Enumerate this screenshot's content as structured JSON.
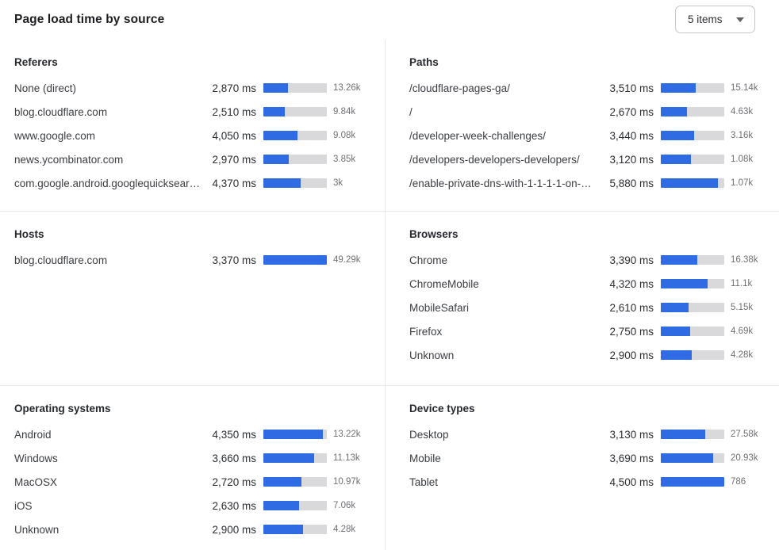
{
  "header": {
    "title": "Page load time by source",
    "items_dropdown": {
      "selected": "5 items"
    }
  },
  "colors": {
    "bar_fill": "#2f6ce3",
    "bar_track": "#d9d9dc",
    "divider": "#e9e9eb"
  },
  "sections": [
    {
      "title": "Referers",
      "rows": [
        {
          "label": "None (direct)",
          "ms": "2,870 ms",
          "ms_value": 2870,
          "count": "13.26k",
          "bar_pct": 39
        },
        {
          "label": "blog.cloudflare.com",
          "ms": "2,510 ms",
          "ms_value": 2510,
          "count": "9.84k",
          "bar_pct": 34
        },
        {
          "label": "www.google.com",
          "ms": "4,050 ms",
          "ms_value": 4050,
          "count": "9.08k",
          "bar_pct": 54
        },
        {
          "label": "news.ycombinator.com",
          "ms": "2,970 ms",
          "ms_value": 2970,
          "count": "3.85k",
          "bar_pct": 40
        },
        {
          "label": "com.google.android.googlequicksearc…",
          "ms": "4,370 ms",
          "ms_value": 4370,
          "count": "3k",
          "bar_pct": 59
        }
      ]
    },
    {
      "title": "Paths",
      "rows": [
        {
          "label": "/cloudflare-pages-ga/",
          "ms": "3,510 ms",
          "ms_value": 3510,
          "count": "15.14k",
          "bar_pct": 55
        },
        {
          "label": "/",
          "ms": "2,670 ms",
          "ms_value": 2670,
          "count": "4.63k",
          "bar_pct": 41
        },
        {
          "label": "/developer-week-challenges/",
          "ms": "3,440 ms",
          "ms_value": 3440,
          "count": "3.16k",
          "bar_pct": 53
        },
        {
          "label": "/developers-developers-developers/",
          "ms": "3,120 ms",
          "ms_value": 3120,
          "count": "1.08k",
          "bar_pct": 48
        },
        {
          "label": "/enable-private-dns-with-1-1-1-1-on-…",
          "ms": "5,880 ms",
          "ms_value": 5880,
          "count": "1.07k",
          "bar_pct": 90
        }
      ]
    },
    {
      "title": "Hosts",
      "rows": [
        {
          "label": "blog.cloudflare.com",
          "ms": "3,370 ms",
          "ms_value": 3370,
          "count": "49.29k",
          "bar_pct": 100
        }
      ]
    },
    {
      "title": "Browsers",
      "rows": [
        {
          "label": "Chrome",
          "ms": "3,390 ms",
          "ms_value": 3390,
          "count": "16.38k",
          "bar_pct": 57
        },
        {
          "label": "ChromeMobile",
          "ms": "4,320 ms",
          "ms_value": 4320,
          "count": "11.1k",
          "bar_pct": 74
        },
        {
          "label": "MobileSafari",
          "ms": "2,610 ms",
          "ms_value": 2610,
          "count": "5.15k",
          "bar_pct": 44
        },
        {
          "label": "Firefox",
          "ms": "2,750 ms",
          "ms_value": 2750,
          "count": "4.69k",
          "bar_pct": 46
        },
        {
          "label": "Unknown",
          "ms": "2,900 ms",
          "ms_value": 2900,
          "count": "4.28k",
          "bar_pct": 49
        }
      ]
    },
    {
      "title": "Operating systems",
      "rows": [
        {
          "label": "Android",
          "ms": "4,350 ms",
          "ms_value": 4350,
          "count": "13.22k",
          "bar_pct": 94
        },
        {
          "label": "Windows",
          "ms": "3,660 ms",
          "ms_value": 3660,
          "count": "11.13k",
          "bar_pct": 80
        },
        {
          "label": "MacOSX",
          "ms": "2,720 ms",
          "ms_value": 2720,
          "count": "10.97k",
          "bar_pct": 60
        },
        {
          "label": "iOS",
          "ms": "2,630 ms",
          "ms_value": 2630,
          "count": "7.06k",
          "bar_pct": 56
        },
        {
          "label": "Unknown",
          "ms": "2,900 ms",
          "ms_value": 2900,
          "count": "4.28k",
          "bar_pct": 63
        }
      ]
    },
    {
      "title": "Device types",
      "rows": [
        {
          "label": "Desktop",
          "ms": "3,130 ms",
          "ms_value": 3130,
          "count": "27.58k",
          "bar_pct": 70
        },
        {
          "label": "Mobile",
          "ms": "3,690 ms",
          "ms_value": 3690,
          "count": "20.93k",
          "bar_pct": 82
        },
        {
          "label": "Tablet",
          "ms": "4,500 ms",
          "ms_value": 4500,
          "count": "786",
          "bar_pct": 100
        }
      ]
    }
  ]
}
